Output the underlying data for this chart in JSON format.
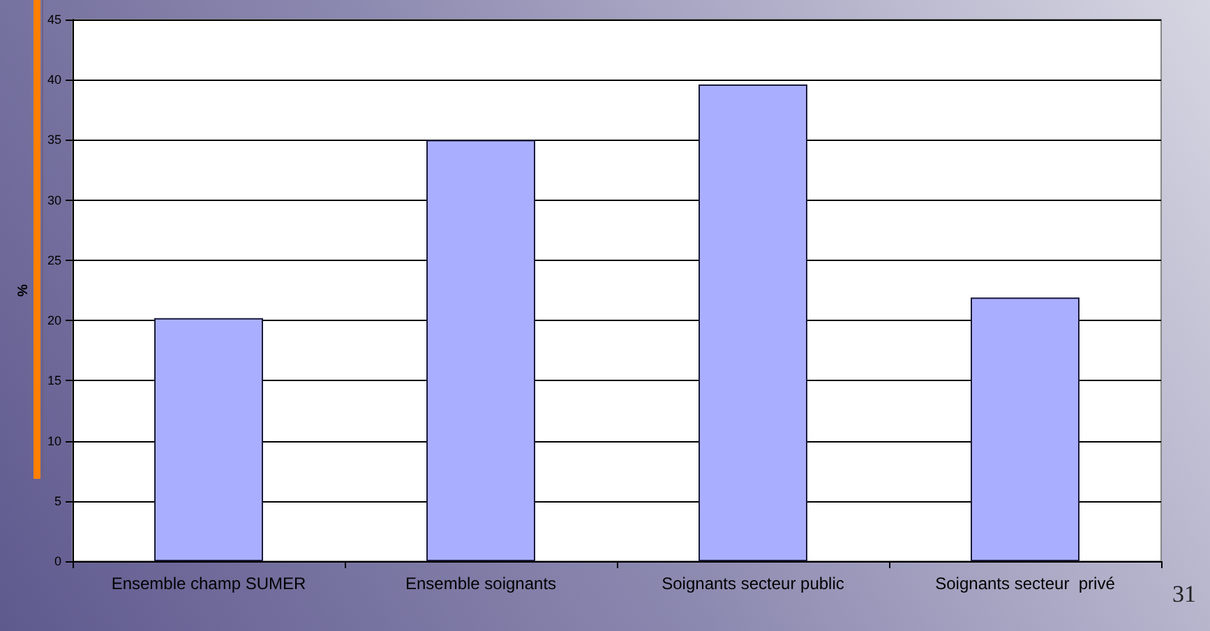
{
  "chart_data": {
    "type": "bar",
    "ylabel": "%",
    "categories": [
      "Ensemble champ SUMER",
      "Ensemble soignants",
      "Soignants secteur public",
      "Soignants secteur  privé"
    ],
    "values": [
      20.2,
      35,
      39.6,
      21.9
    ],
    "color": "#aaaeff",
    "ylim": [
      0,
      45
    ],
    "yticks": [
      0,
      5,
      10,
      15,
      20,
      25,
      30,
      35,
      40,
      45
    ],
    "grid": "y",
    "annotations": [
      "31"
    ]
  }
}
